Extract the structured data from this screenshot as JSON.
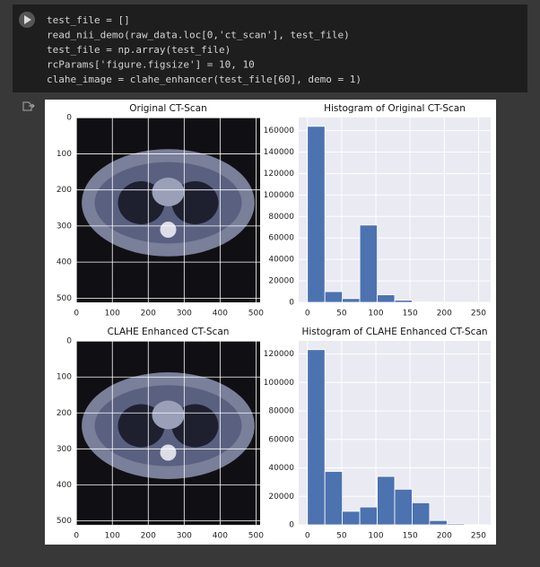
{
  "code": [
    "test_file = []",
    "read_nii_demo(raw_data.loc[0,'ct_scan'], test_file)",
    "test_file = np.array(test_file)",
    "rcParams['figure.figsize'] = 10, 10",
    "clahe_image = clahe_enhancer(test_file[60], demo = 1)"
  ],
  "images": [
    {
      "title": "Original CT-Scan",
      "xlim": [
        -0.5,
        511.5
      ],
      "ylim": [
        511.5,
        -0.5
      ],
      "xticks": [
        0,
        100,
        200,
        300,
        400,
        500
      ],
      "yticks": [
        0,
        100,
        200,
        300,
        400,
        500
      ],
      "grid": true
    },
    {
      "title": "CLAHE Enhanced CT-Scan",
      "xlim": [
        -0.5,
        511.5
      ],
      "ylim": [
        511.5,
        -0.5
      ],
      "xticks": [
        0,
        100,
        200,
        300,
        400,
        500
      ],
      "yticks": [
        0,
        100,
        200,
        300,
        400,
        500
      ],
      "grid": true
    }
  ],
  "chart_data": [
    {
      "type": "histogram",
      "title": "Histogram of Original CT-Scan",
      "bins": [
        0,
        25.5,
        51,
        76.5,
        102,
        127.5,
        153,
        178.5,
        204,
        229.5,
        255
      ],
      "values": [
        164000,
        10000,
        3500,
        72000,
        7000,
        2000,
        500,
        200,
        100,
        50
      ],
      "color": "#4c72b0",
      "xlim": [
        -12.75,
        267.75
      ],
      "ylim": [
        0,
        172200
      ],
      "xticks": [
        0,
        50,
        100,
        150,
        200,
        250
      ],
      "yticks": [
        0,
        20000,
        40000,
        60000,
        80000,
        100000,
        120000,
        140000,
        160000
      ],
      "grid": true
    },
    {
      "type": "histogram",
      "title": "Histogram of CLAHE Enhanced CT-Scan",
      "bins": [
        0,
        25.5,
        51,
        76.5,
        102,
        127.5,
        153,
        178.5,
        204,
        229.5,
        255
      ],
      "values": [
        123000,
        37500,
        9500,
        12500,
        34000,
        25000,
        15500,
        3000,
        800,
        100
      ],
      "color": "#4c72b0",
      "xlim": [
        -12.75,
        267.75
      ],
      "ylim": [
        0,
        129150
      ],
      "xticks": [
        0,
        50,
        100,
        150,
        200,
        250
      ],
      "yticks": [
        0,
        20000,
        40000,
        60000,
        80000,
        100000,
        120000
      ],
      "grid": true
    }
  ]
}
